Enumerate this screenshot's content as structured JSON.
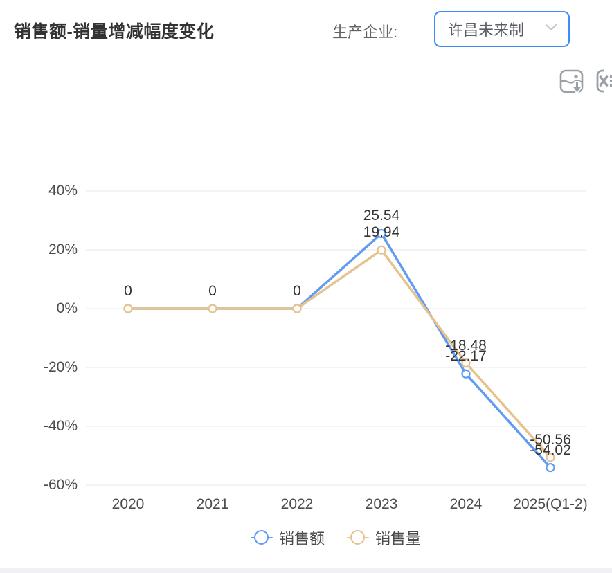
{
  "header": {
    "title": "销售额-销量增减幅度变化",
    "filter_label": "生产企业:",
    "filter_value": "许昌未来制"
  },
  "toolbar": {
    "icons": [
      "image-download-icon",
      "excel-export-icon"
    ]
  },
  "colors": {
    "series_blue": "#609cf3",
    "series_orange": "#e6c28c",
    "dropdown_border": "#3d8cf7",
    "icon_gray": "#9b9fa8",
    "gridline": "#e7e7ea",
    "axis_text": "#4c4c4c",
    "label_text": "#333333",
    "bottom_strip": "#eff1f5"
  },
  "chart_data": {
    "type": "line",
    "title": "销售额-销量增减幅度变化",
    "categories": [
      "2020",
      "2021",
      "2022",
      "2023",
      "2024",
      "2025(Q1-2)"
    ],
    "series": [
      {
        "name": "销售额",
        "color": "#609cf3",
        "values": [
          0,
          0,
          0,
          25.54,
          -22.17,
          -54.02
        ],
        "labels": [
          "0",
          "0",
          "0",
          "25.54",
          "-22.17",
          "-54.02"
        ]
      },
      {
        "name": "销售量",
        "color": "#e6c28c",
        "values": [
          0,
          0,
          0,
          19.94,
          -18.48,
          -50.56
        ],
        "labels": [
          "0",
          "0",
          "0",
          "19.94",
          "-18.48",
          "-50.56"
        ]
      }
    ],
    "y_ticks": [
      "40%",
      "20%",
      "0%",
      "-20%",
      "-40%",
      "-60%"
    ],
    "y_tick_values": [
      40,
      20,
      0,
      -20,
      -40,
      -60
    ],
    "ylim": [
      -60,
      40
    ],
    "unit": "%",
    "grid": true,
    "legend_position": "bottom"
  }
}
